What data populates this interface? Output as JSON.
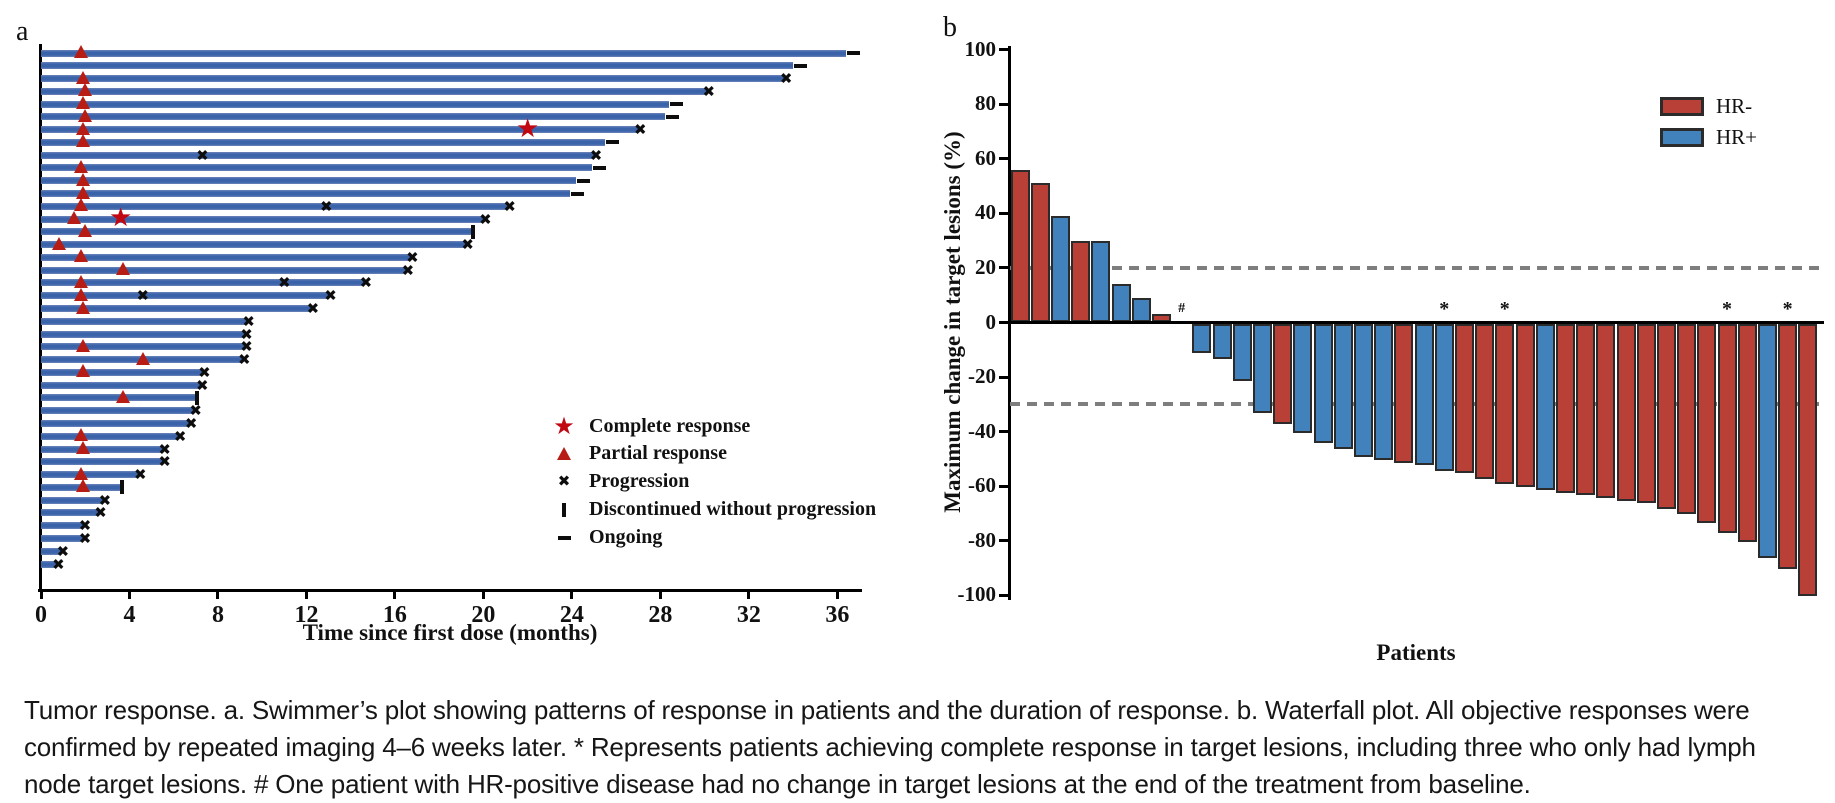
{
  "caption": "Tumor response. a. Swimmer’s plot showing patterns of response in patients and the duration of response. b. Waterfall plot. All objective responses were confirmed by repeated imaging 4–6 weeks later. * Represents patients achieving complete response in target lesions, including three who only had lymph node target lesions. # One patient with HR-positive disease had no change in target lesions at the end of the treatment from baseline.",
  "panel_a": {
    "label": "a",
    "xlabel": "Time since first dose (months)",
    "legend": [
      {
        "symbol": "star",
        "label": "Complete response"
      },
      {
        "symbol": "triangle",
        "label": "Partial response"
      },
      {
        "symbol": "x",
        "label": "Progression"
      },
      {
        "symbol": "bar",
        "label": "Discontinued without progression"
      },
      {
        "symbol": "dash",
        "label": "Ongoing"
      }
    ]
  },
  "panel_b": {
    "label": "b",
    "ylabel": "Maximum change in target lesions (%)",
    "xlabel": "Patients",
    "legend": [
      {
        "group": "HR-",
        "label": "HR-"
      },
      {
        "group": "HR+",
        "label": "HR+"
      }
    ]
  },
  "chart_data": [
    {
      "type": "bar",
      "subtype": "swimmer",
      "xlabel": "Time since first dose (months)",
      "x_ticks": [
        0,
        4,
        8,
        12,
        16,
        20,
        24,
        28,
        32,
        36
      ],
      "x_range": [
        0,
        38
      ],
      "bar_color": "#3b63a9",
      "marker_colors": {
        "partial_response": "#b71d15",
        "complete_response": "#c00712",
        "progression": "#0d0d0d"
      },
      "patients": [
        {
          "duration": 36.4,
          "partial_response_at": 1.8,
          "end": "ongoing"
        },
        {
          "duration": 34.0,
          "end": "ongoing"
        },
        {
          "duration": 33.6,
          "partial_response_at": 1.9,
          "end": "progression"
        },
        {
          "duration": 30.1,
          "partial_response_at": 2.0,
          "end": "progression"
        },
        {
          "duration": 28.4,
          "partial_response_at": 1.9,
          "end": "ongoing"
        },
        {
          "duration": 28.2,
          "partial_response_at": 2.0,
          "end": "ongoing"
        },
        {
          "duration": 27.0,
          "partial_response_at": 1.9,
          "complete_response_at": 22.0,
          "end": "progression"
        },
        {
          "duration": 25.5,
          "partial_response_at": 1.9,
          "end": "ongoing"
        },
        {
          "duration": 25.0,
          "progression_at": 7.3,
          "end": "progression"
        },
        {
          "duration": 24.9,
          "partial_response_at": 1.8,
          "end": "ongoing"
        },
        {
          "duration": 24.2,
          "partial_response_at": 1.9,
          "end": "ongoing"
        },
        {
          "duration": 23.9,
          "partial_response_at": 1.9,
          "end": "ongoing"
        },
        {
          "duration": 21.1,
          "partial_response_at": 1.8,
          "progression_at": 12.9,
          "end": "progression"
        },
        {
          "duration": 20.0,
          "partial_response_at": 1.5,
          "complete_response_at": 3.6,
          "end": "progression"
        },
        {
          "duration": 19.5,
          "partial_response_at": 2.0,
          "end": "discontinued"
        },
        {
          "duration": 19.2,
          "partial_response_at": 0.8,
          "end": "progression"
        },
        {
          "duration": 16.7,
          "partial_response_at": 1.8,
          "end": "progression"
        },
        {
          "duration": 16.5,
          "partial_response_at": 3.7,
          "end": "progression"
        },
        {
          "duration": 14.6,
          "partial_response_at": 1.8,
          "progression_at": 11.0,
          "end": "progression"
        },
        {
          "duration": 13.0,
          "partial_response_at": 1.8,
          "progression_at": 4.6,
          "end": "progression"
        },
        {
          "duration": 12.2,
          "partial_response_at": 1.9,
          "end": "progression"
        },
        {
          "duration": 9.3,
          "end": "progression"
        },
        {
          "duration": 9.2,
          "end": "progression"
        },
        {
          "duration": 9.2,
          "partial_response_at": 1.9,
          "end": "progression"
        },
        {
          "duration": 9.1,
          "partial_response_at": 4.6,
          "end": "progression"
        },
        {
          "duration": 7.3,
          "partial_response_at": 1.9,
          "end": "progression"
        },
        {
          "duration": 7.2,
          "end": "progression"
        },
        {
          "duration": 7.0,
          "partial_response_at": 3.7,
          "end": "discontinued"
        },
        {
          "duration": 6.9,
          "end": "progression"
        },
        {
          "duration": 6.7,
          "end": "progression"
        },
        {
          "duration": 6.2,
          "partial_response_at": 1.8,
          "end": "progression"
        },
        {
          "duration": 5.5,
          "partial_response_at": 1.9,
          "end": "progression"
        },
        {
          "duration": 5.5,
          "end": "progression"
        },
        {
          "duration": 4.4,
          "partial_response_at": 1.8,
          "end": "progression"
        },
        {
          "duration": 3.6,
          "partial_response_at": 1.9,
          "end": "discontinued"
        },
        {
          "duration": 2.8,
          "end": "progression"
        },
        {
          "duration": 2.6,
          "end": "progression"
        },
        {
          "duration": 1.9,
          "end": "progression"
        },
        {
          "duration": 1.9,
          "end": "progression"
        },
        {
          "duration": 0.9,
          "end": "progression"
        },
        {
          "duration": 0.7,
          "end": "progression"
        }
      ]
    },
    {
      "type": "bar",
      "subtype": "waterfall",
      "ylabel": "Maximum change in target lesions (%)",
      "xlabel": "Patients",
      "ylim": [
        -100,
        100
      ],
      "y_ticks": [
        100,
        80,
        60,
        40,
        20,
        0,
        -20,
        -40,
        -60,
        -80,
        -100
      ],
      "reference_lines": [
        20,
        -30
      ],
      "colors": {
        "HR-": "#b94036",
        "HR+": "#4181bc"
      },
      "patients": [
        {
          "value": 56,
          "group": "HR-"
        },
        {
          "value": 51,
          "group": "HR-"
        },
        {
          "value": 39,
          "group": "HR+"
        },
        {
          "value": 30,
          "group": "HR-"
        },
        {
          "value": 30,
          "group": "HR+"
        },
        {
          "value": 14,
          "group": "HR+"
        },
        {
          "value": 9,
          "group": "HR+"
        },
        {
          "value": 3,
          "group": "HR-"
        },
        {
          "value": 0,
          "group": "HR+",
          "annotation": "#"
        },
        {
          "value": -11,
          "group": "HR+"
        },
        {
          "value": -13,
          "group": "HR+"
        },
        {
          "value": -21,
          "group": "HR+"
        },
        {
          "value": -33,
          "group": "HR+"
        },
        {
          "value": -37,
          "group": "HR-"
        },
        {
          "value": -40,
          "group": "HR+"
        },
        {
          "value": -44,
          "group": "HR+"
        },
        {
          "value": -46,
          "group": "HR+"
        },
        {
          "value": -49,
          "group": "HR+"
        },
        {
          "value": -50,
          "group": "HR+"
        },
        {
          "value": -51,
          "group": "HR-"
        },
        {
          "value": -52,
          "group": "HR+"
        },
        {
          "value": -54,
          "group": "HR+",
          "annotation": "*"
        },
        {
          "value": -55,
          "group": "HR-"
        },
        {
          "value": -57,
          "group": "HR-"
        },
        {
          "value": -59,
          "group": "HR-",
          "annotation": "*"
        },
        {
          "value": -60,
          "group": "HR-"
        },
        {
          "value": -61,
          "group": "HR+"
        },
        {
          "value": -62,
          "group": "HR-"
        },
        {
          "value": -63,
          "group": "HR-"
        },
        {
          "value": -64,
          "group": "HR-"
        },
        {
          "value": -65,
          "group": "HR-"
        },
        {
          "value": -66,
          "group": "HR-"
        },
        {
          "value": -68,
          "group": "HR-"
        },
        {
          "value": -70,
          "group": "HR-"
        },
        {
          "value": -73,
          "group": "HR-"
        },
        {
          "value": -77,
          "group": "HR-",
          "annotation": "*"
        },
        {
          "value": -80,
          "group": "HR-"
        },
        {
          "value": -86,
          "group": "HR+"
        },
        {
          "value": -90,
          "group": "HR-",
          "annotation": "*"
        },
        {
          "value": -100,
          "group": "HR-"
        }
      ]
    }
  ]
}
